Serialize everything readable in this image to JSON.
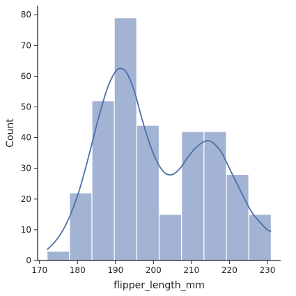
{
  "chart_data": {
    "type": "bar",
    "subtype": "histogram-with-kde",
    "xlabel": "flipper_length_mm",
    "ylabel": "Count",
    "xlim": [
      169.5,
      233.5
    ],
    "ylim": [
      0,
      83
    ],
    "xticks": [
      170,
      180,
      190,
      200,
      210,
      220,
      230
    ],
    "yticks": [
      0,
      10,
      20,
      30,
      40,
      50,
      60,
      70,
      80
    ],
    "bins": [
      {
        "x0": 172.0,
        "x1": 177.9,
        "count": 3
      },
      {
        "x0": 177.9,
        "x1": 183.8,
        "count": 22
      },
      {
        "x0": 183.8,
        "x1": 189.7,
        "count": 52
      },
      {
        "x0": 189.7,
        "x1": 195.6,
        "count": 79
      },
      {
        "x0": 195.6,
        "x1": 201.5,
        "count": 44
      },
      {
        "x0": 201.5,
        "x1": 207.4,
        "count": 15
      },
      {
        "x0": 207.4,
        "x1": 213.3,
        "count": 42
      },
      {
        "x0": 213.3,
        "x1": 219.2,
        "count": 42
      },
      {
        "x0": 219.2,
        "x1": 225.1,
        "count": 28
      },
      {
        "x0": 225.1,
        "x1": 231.0,
        "count": 15
      }
    ],
    "kde": {
      "x": [
        172,
        174,
        176,
        178,
        180,
        182,
        184,
        186,
        188,
        190,
        191.5,
        193,
        195,
        197,
        199,
        201,
        203,
        205,
        207,
        209,
        211,
        213,
        214.5,
        216,
        218,
        220,
        222,
        224,
        226,
        228,
        230,
        231
      ],
      "y": [
        3.5,
        6,
        9.5,
        14.5,
        21,
        29.5,
        39,
        48.5,
        56.5,
        61.5,
        62.5,
        61,
        55,
        46,
        38,
        32,
        28.5,
        28,
        30,
        33.5,
        36.5,
        38.5,
        39,
        38,
        35,
        30,
        25,
        20,
        15.5,
        12.5,
        10,
        9.5
      ]
    },
    "colors": {
      "bar_fill": "#a3b3d4",
      "bar_edge": "#ffffff",
      "kde_line": "#4c6fa7",
      "axis": "#222222"
    },
    "grid": false,
    "legend": "none"
  }
}
